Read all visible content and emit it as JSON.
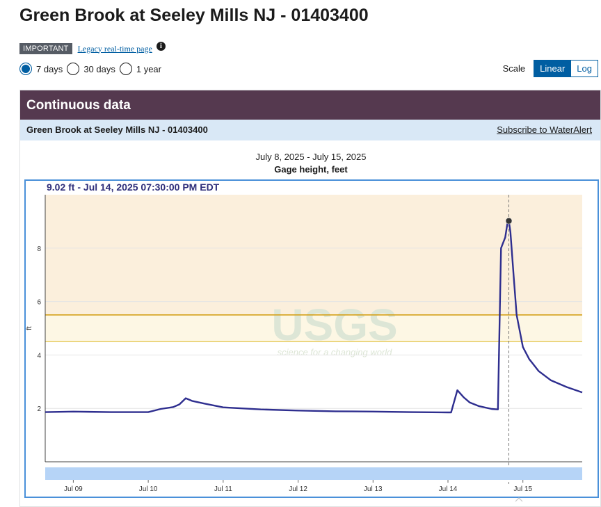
{
  "page": {
    "title": "Green Brook at Seeley Mills NJ - 01403400"
  },
  "notice": {
    "badge": "IMPORTANT",
    "link": "Legacy real-time page",
    "info_icon": "info-icon"
  },
  "range": {
    "options": [
      "7 days",
      "30 days",
      "1 year"
    ],
    "selected": "7 days"
  },
  "scale": {
    "label": "Scale",
    "options": [
      "Linear",
      "Log"
    ],
    "selected": "Linear"
  },
  "card": {
    "title": "Continuous data",
    "site_name": "Green Brook at Seeley Mills NJ - 01403400",
    "subscribe_link": "Subscribe to WaterAlert"
  },
  "chart_data": {
    "type": "line",
    "date_range": "July 8, 2025 - July 15, 2025",
    "title": "Gage height, feet",
    "ylabel": "ft",
    "tooltip": "9.02 ft - Jul 14, 2025 07:30:00 PM EDT",
    "watermark": "USGS",
    "watermark_tagline": "science for a changing world",
    "ylim": [
      0,
      10
    ],
    "xlim": [
      "2025-07-08T15:00",
      "2025-07-15T19:00"
    ],
    "yticks": [
      2,
      4,
      6,
      8
    ],
    "xticks": [
      {
        "label": "Jul 09",
        "t": "2025-07-09T00:00"
      },
      {
        "label": "Jul 10",
        "t": "2025-07-10T00:00"
      },
      {
        "label": "Jul 11",
        "t": "2025-07-11T00:00"
      },
      {
        "label": "Jul 12",
        "t": "2025-07-12T00:00"
      },
      {
        "label": "Jul 13",
        "t": "2025-07-13T00:00"
      },
      {
        "label": "Jul 14",
        "t": "2025-07-14T00:00"
      },
      {
        "label": "Jul 15",
        "t": "2025-07-15T00:00"
      }
    ],
    "thresholds": [
      {
        "value": 5.5,
        "color": "#d4a017"
      },
      {
        "value": 4.5,
        "color": "#e8cf6a"
      }
    ],
    "highlight_point": {
      "t": "2025-07-14T19:30",
      "y": 9.02
    },
    "grid": true,
    "legend": "none",
    "series": [
      {
        "color": "#2e2e8f",
        "points": [
          [
            "2025-07-08T15:00",
            1.86
          ],
          [
            "2025-07-09T00:00",
            1.88
          ],
          [
            "2025-07-09T12:00",
            1.86
          ],
          [
            "2025-07-10T00:00",
            1.86
          ],
          [
            "2025-07-10T04:00",
            1.98
          ],
          [
            "2025-07-10T08:00",
            2.05
          ],
          [
            "2025-07-10T10:00",
            2.15
          ],
          [
            "2025-07-10T12:00",
            2.38
          ],
          [
            "2025-07-10T14:00",
            2.28
          ],
          [
            "2025-07-10T18:00",
            2.18
          ],
          [
            "2025-07-11T00:00",
            2.04
          ],
          [
            "2025-07-11T12:00",
            1.96
          ],
          [
            "2025-07-12T00:00",
            1.92
          ],
          [
            "2025-07-12T12:00",
            1.89
          ],
          [
            "2025-07-13T00:00",
            1.88
          ],
          [
            "2025-07-13T12:00",
            1.86
          ],
          [
            "2025-07-14T00:00",
            1.85
          ],
          [
            "2025-07-14T01:00",
            1.85
          ],
          [
            "2025-07-14T03:00",
            2.68
          ],
          [
            "2025-07-14T05:00",
            2.42
          ],
          [
            "2025-07-14T07:00",
            2.22
          ],
          [
            "2025-07-14T10:00",
            2.08
          ],
          [
            "2025-07-14T14:00",
            1.98
          ],
          [
            "2025-07-14T16:00",
            1.96
          ],
          [
            "2025-07-14T17:00",
            8.0
          ],
          [
            "2025-07-14T17:40",
            8.2
          ],
          [
            "2025-07-14T18:20",
            8.4
          ],
          [
            "2025-07-14T19:00",
            8.9
          ],
          [
            "2025-07-14T19:30",
            9.02
          ],
          [
            "2025-07-14T20:00",
            8.6
          ],
          [
            "2025-07-14T21:00",
            7.0
          ],
          [
            "2025-07-14T22:00",
            5.5
          ],
          [
            "2025-07-15T00:00",
            4.3
          ],
          [
            "2025-07-15T02:00",
            3.85
          ],
          [
            "2025-07-15T05:00",
            3.4
          ],
          [
            "2025-07-15T09:00",
            3.05
          ],
          [
            "2025-07-15T14:00",
            2.8
          ],
          [
            "2025-07-15T19:00",
            2.6
          ]
        ]
      }
    ]
  }
}
